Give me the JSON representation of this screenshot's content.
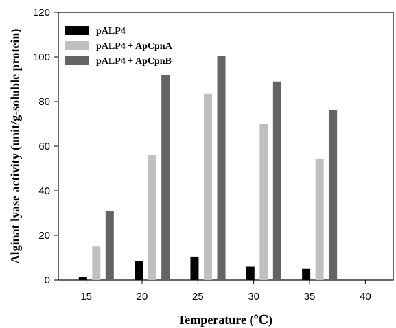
{
  "chart_data": {
    "type": "bar",
    "xlabel": "Temperature (℃)",
    "ylabel": "Alginat lyase activity (unit/g-soluble protein)",
    "x_ticks": [
      "15",
      "20",
      "25",
      "30",
      "35",
      "40"
    ],
    "xlim": [
      12.5,
      42.5
    ],
    "ylim": [
      0,
      120
    ],
    "y_ticks": [
      "0",
      "20",
      "40",
      "60",
      "80",
      "100",
      "120"
    ],
    "grid": false,
    "legend_position": "top-left",
    "categories": [
      "15",
      "20",
      "25",
      "30",
      "35"
    ],
    "series": [
      {
        "name": "pALP4",
        "color": "#000000",
        "x": [
          14.7,
          19.7,
          24.7,
          29.7,
          34.7
        ],
        "values": [
          1.5,
          8.5,
          10.5,
          6.0,
          5.0
        ]
      },
      {
        "name": "pALP4 + ApCpnA",
        "color": "#c0c0c0",
        "x": [
          15.9,
          20.9,
          25.9,
          30.9,
          35.9
        ],
        "values": [
          15.0,
          56.0,
          83.5,
          70.0,
          54.5
        ]
      },
      {
        "name": "pALP4 + ApCpnB",
        "color": "#646464",
        "x": [
          17.1,
          22.1,
          27.1,
          32.1,
          37.1
        ],
        "values": [
          31.0,
          92.0,
          100.5,
          89.0,
          76.0
        ]
      }
    ]
  }
}
